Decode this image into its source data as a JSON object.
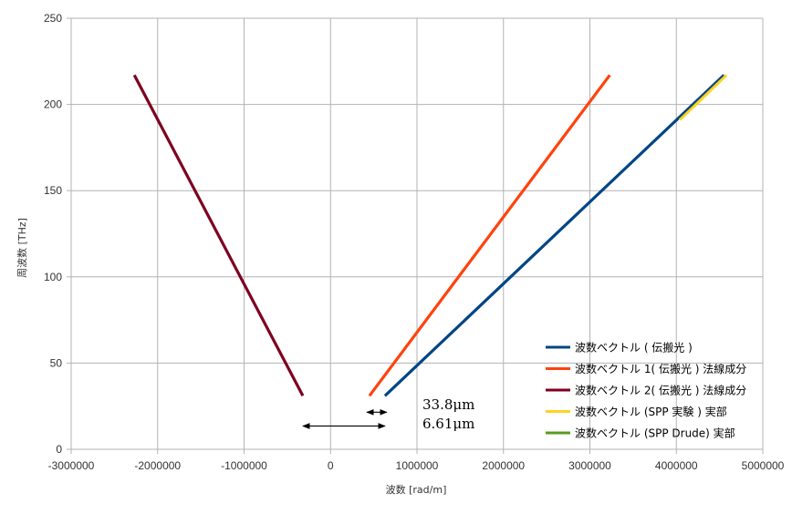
{
  "chart_data": {
    "type": "line",
    "xlabel": "波数 [rad/m]",
    "ylabel": "周波数 [THz]",
    "xlim": [
      -3000000,
      5000000
    ],
    "ylim": [
      0,
      250
    ],
    "x_ticks": [
      -3000000,
      -2000000,
      -1000000,
      0,
      1000000,
      2000000,
      3000000,
      4000000,
      5000000
    ],
    "x_tick_labels": [
      "-3000000",
      "-2000000",
      "-1000000",
      "0",
      "1000000",
      "2000000",
      "3000000",
      "4000000",
      "5000000"
    ],
    "y_ticks": [
      0,
      50,
      100,
      150,
      200,
      250
    ],
    "y_tick_labels": [
      "0",
      "50",
      "100",
      "150",
      "200",
      "250"
    ],
    "grid": true,
    "legend_position": "right",
    "series": [
      {
        "name": "波数ベクトル ( 伝搬光 )",
        "color": "#004586",
        "x": [
          630000,
          4550000
        ],
        "y": [
          31,
          217
        ]
      },
      {
        "name": "波数ベクトル 1( 伝搬光 ) 法線成分",
        "color": "#ff420e",
        "x": [
          450000,
          3230000
        ],
        "y": [
          31,
          217
        ]
      },
      {
        "name": "波数ベクトル 2( 伝搬光 ) 法線成分",
        "color": "#7e0021",
        "x": [
          -320000,
          -2270000
        ],
        "y": [
          31,
          217
        ]
      },
      {
        "name": "波数ベクトル (SPP  実験 )  実部",
        "color": "#ffd320",
        "x": [
          4040000,
          4580000
        ],
        "y": [
          191,
          217
        ]
      },
      {
        "name": "波数ベクトル (SPP Drude)  実部",
        "color": "#579d1c",
        "x": [],
        "y": []
      }
    ],
    "annotations": [
      {
        "text": "33.8μm",
        "arrow_x": [
          420000,
          650000
        ],
        "arrow_y": 21.5
      },
      {
        "text": "6.61μm",
        "arrow_x": [
          -320000,
          630000
        ],
        "arrow_y": 13.5
      }
    ]
  }
}
